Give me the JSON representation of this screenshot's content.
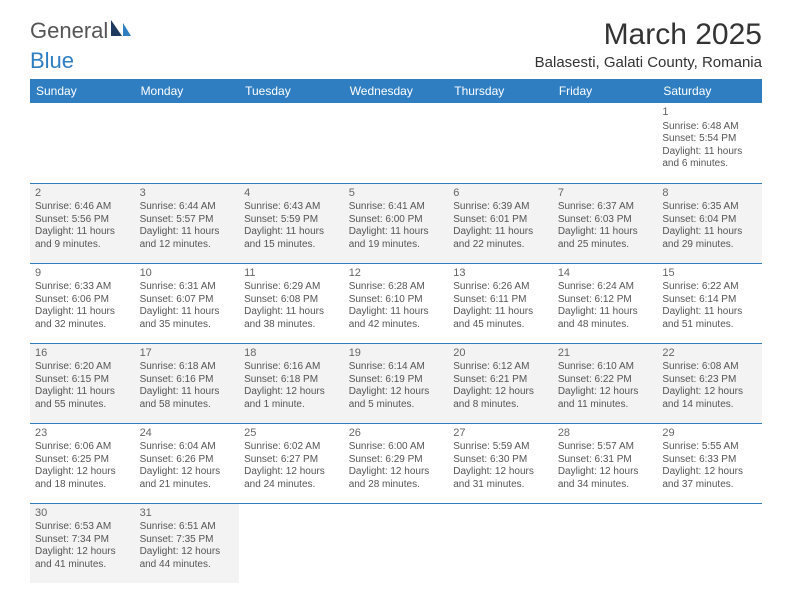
{
  "logo": {
    "text1": "General",
    "text2": "Blue"
  },
  "title": {
    "month": "March 2025",
    "location": "Balasesti, Galati County, Romania"
  },
  "dayHeaders": [
    "Sunday",
    "Monday",
    "Tuesday",
    "Wednesday",
    "Thursday",
    "Friday",
    "Saturday"
  ],
  "colors": {
    "headerBg": "#2f7ec2",
    "headerText": "#ffffff",
    "altRow": "#f3f3f3",
    "border": "#2f7ec2"
  },
  "weeks": [
    [
      null,
      null,
      null,
      null,
      null,
      null,
      {
        "n": "1",
        "sunrise": "Sunrise: 6:48 AM",
        "sunset": "Sunset: 5:54 PM",
        "daylight": "Daylight: 11 hours and 6 minutes."
      }
    ],
    [
      {
        "n": "2",
        "sunrise": "Sunrise: 6:46 AM",
        "sunset": "Sunset: 5:56 PM",
        "daylight": "Daylight: 11 hours and 9 minutes."
      },
      {
        "n": "3",
        "sunrise": "Sunrise: 6:44 AM",
        "sunset": "Sunset: 5:57 PM",
        "daylight": "Daylight: 11 hours and 12 minutes."
      },
      {
        "n": "4",
        "sunrise": "Sunrise: 6:43 AM",
        "sunset": "Sunset: 5:59 PM",
        "daylight": "Daylight: 11 hours and 15 minutes."
      },
      {
        "n": "5",
        "sunrise": "Sunrise: 6:41 AM",
        "sunset": "Sunset: 6:00 PM",
        "daylight": "Daylight: 11 hours and 19 minutes."
      },
      {
        "n": "6",
        "sunrise": "Sunrise: 6:39 AM",
        "sunset": "Sunset: 6:01 PM",
        "daylight": "Daylight: 11 hours and 22 minutes."
      },
      {
        "n": "7",
        "sunrise": "Sunrise: 6:37 AM",
        "sunset": "Sunset: 6:03 PM",
        "daylight": "Daylight: 11 hours and 25 minutes."
      },
      {
        "n": "8",
        "sunrise": "Sunrise: 6:35 AM",
        "sunset": "Sunset: 6:04 PM",
        "daylight": "Daylight: 11 hours and 29 minutes."
      }
    ],
    [
      {
        "n": "9",
        "sunrise": "Sunrise: 6:33 AM",
        "sunset": "Sunset: 6:06 PM",
        "daylight": "Daylight: 11 hours and 32 minutes."
      },
      {
        "n": "10",
        "sunrise": "Sunrise: 6:31 AM",
        "sunset": "Sunset: 6:07 PM",
        "daylight": "Daylight: 11 hours and 35 minutes."
      },
      {
        "n": "11",
        "sunrise": "Sunrise: 6:29 AM",
        "sunset": "Sunset: 6:08 PM",
        "daylight": "Daylight: 11 hours and 38 minutes."
      },
      {
        "n": "12",
        "sunrise": "Sunrise: 6:28 AM",
        "sunset": "Sunset: 6:10 PM",
        "daylight": "Daylight: 11 hours and 42 minutes."
      },
      {
        "n": "13",
        "sunrise": "Sunrise: 6:26 AM",
        "sunset": "Sunset: 6:11 PM",
        "daylight": "Daylight: 11 hours and 45 minutes."
      },
      {
        "n": "14",
        "sunrise": "Sunrise: 6:24 AM",
        "sunset": "Sunset: 6:12 PM",
        "daylight": "Daylight: 11 hours and 48 minutes."
      },
      {
        "n": "15",
        "sunrise": "Sunrise: 6:22 AM",
        "sunset": "Sunset: 6:14 PM",
        "daylight": "Daylight: 11 hours and 51 minutes."
      }
    ],
    [
      {
        "n": "16",
        "sunrise": "Sunrise: 6:20 AM",
        "sunset": "Sunset: 6:15 PM",
        "daylight": "Daylight: 11 hours and 55 minutes."
      },
      {
        "n": "17",
        "sunrise": "Sunrise: 6:18 AM",
        "sunset": "Sunset: 6:16 PM",
        "daylight": "Daylight: 11 hours and 58 minutes."
      },
      {
        "n": "18",
        "sunrise": "Sunrise: 6:16 AM",
        "sunset": "Sunset: 6:18 PM",
        "daylight": "Daylight: 12 hours and 1 minute."
      },
      {
        "n": "19",
        "sunrise": "Sunrise: 6:14 AM",
        "sunset": "Sunset: 6:19 PM",
        "daylight": "Daylight: 12 hours and 5 minutes."
      },
      {
        "n": "20",
        "sunrise": "Sunrise: 6:12 AM",
        "sunset": "Sunset: 6:21 PM",
        "daylight": "Daylight: 12 hours and 8 minutes."
      },
      {
        "n": "21",
        "sunrise": "Sunrise: 6:10 AM",
        "sunset": "Sunset: 6:22 PM",
        "daylight": "Daylight: 12 hours and 11 minutes."
      },
      {
        "n": "22",
        "sunrise": "Sunrise: 6:08 AM",
        "sunset": "Sunset: 6:23 PM",
        "daylight": "Daylight: 12 hours and 14 minutes."
      }
    ],
    [
      {
        "n": "23",
        "sunrise": "Sunrise: 6:06 AM",
        "sunset": "Sunset: 6:25 PM",
        "daylight": "Daylight: 12 hours and 18 minutes."
      },
      {
        "n": "24",
        "sunrise": "Sunrise: 6:04 AM",
        "sunset": "Sunset: 6:26 PM",
        "daylight": "Daylight: 12 hours and 21 minutes."
      },
      {
        "n": "25",
        "sunrise": "Sunrise: 6:02 AM",
        "sunset": "Sunset: 6:27 PM",
        "daylight": "Daylight: 12 hours and 24 minutes."
      },
      {
        "n": "26",
        "sunrise": "Sunrise: 6:00 AM",
        "sunset": "Sunset: 6:29 PM",
        "daylight": "Daylight: 12 hours and 28 minutes."
      },
      {
        "n": "27",
        "sunrise": "Sunrise: 5:59 AM",
        "sunset": "Sunset: 6:30 PM",
        "daylight": "Daylight: 12 hours and 31 minutes."
      },
      {
        "n": "28",
        "sunrise": "Sunrise: 5:57 AM",
        "sunset": "Sunset: 6:31 PM",
        "daylight": "Daylight: 12 hours and 34 minutes."
      },
      {
        "n": "29",
        "sunrise": "Sunrise: 5:55 AM",
        "sunset": "Sunset: 6:33 PM",
        "daylight": "Daylight: 12 hours and 37 minutes."
      }
    ],
    [
      {
        "n": "30",
        "sunrise": "Sunrise: 6:53 AM",
        "sunset": "Sunset: 7:34 PM",
        "daylight": "Daylight: 12 hours and 41 minutes."
      },
      {
        "n": "31",
        "sunrise": "Sunrise: 6:51 AM",
        "sunset": "Sunset: 7:35 PM",
        "daylight": "Daylight: 12 hours and 44 minutes."
      },
      null,
      null,
      null,
      null,
      null
    ]
  ]
}
